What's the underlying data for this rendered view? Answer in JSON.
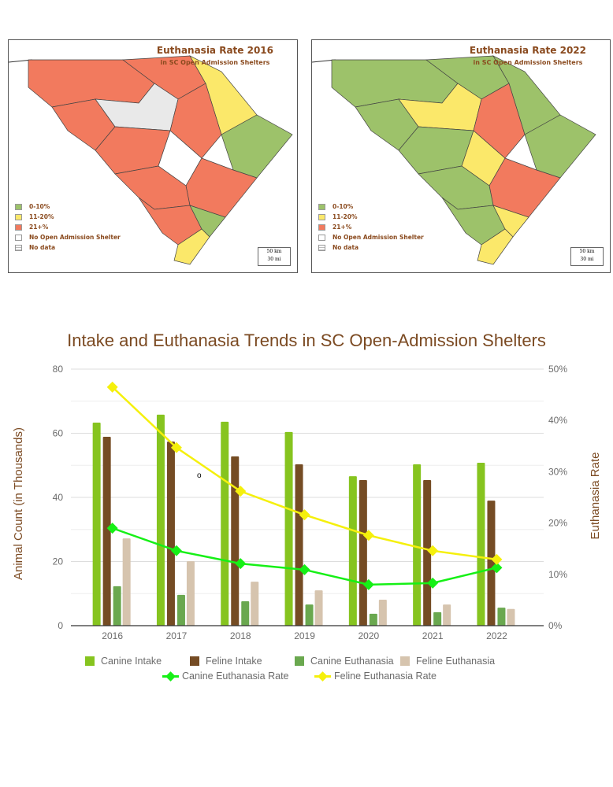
{
  "maps": [
    {
      "title": "Euthanasia Rate 2016",
      "subtitle": "in SC Open Admission Shelters",
      "scale_km": "50 km",
      "scale_mi": "30 mi"
    },
    {
      "title": "Euthanasia Rate 2022",
      "subtitle": "in SC Open Admission Shelters",
      "scale_km": "50 km",
      "scale_mi": "30 mi"
    }
  ],
  "map_legend": [
    {
      "label": "0-10%",
      "color": "#9dc26a"
    },
    {
      "label": "11-20%",
      "color": "#fbe86a"
    },
    {
      "label": "21+%",
      "color": "#f27a5e"
    },
    {
      "label": "No Open Admission Shelter",
      "color": "#ffffff"
    },
    {
      "label": "No data",
      "color": "#e9e9e9"
    }
  ],
  "stray_mark": "o",
  "chart_data": {
    "type": "bar",
    "title": "Intake and Euthanasia Trends in SC Open-Admission Shelters",
    "xlabel": "",
    "ylabel": "Animal Count (in Thousands)",
    "y2label": "Euthanasia Rate",
    "categories": [
      "2016",
      "2017",
      "2018",
      "2019",
      "2020",
      "2021",
      "2022"
    ],
    "ylim": [
      0,
      80
    ],
    "yticks": [
      "0",
      "20",
      "40",
      "60",
      "80"
    ],
    "y2lim": [
      0,
      50
    ],
    "y2ticks": [
      "0%",
      "10%",
      "20%",
      "30%",
      "40%",
      "50%"
    ],
    "grid": true,
    "legend_placement": "bottom",
    "series": [
      {
        "name": "Canine Intake",
        "kind": "bar",
        "color": "#86c41f",
        "values": [
          63.3,
          65.8,
          63.6,
          60.4,
          46.6,
          50.3,
          50.8
        ]
      },
      {
        "name": "Feline Intake",
        "kind": "bar",
        "color": "#754c24",
        "values": [
          58.9,
          57.4,
          52.8,
          50.3,
          45.4,
          45.4,
          39.0
        ]
      },
      {
        "name": "Canine Euthanasia",
        "kind": "bar",
        "color": "#6aa84f",
        "values": [
          12.3,
          9.6,
          7.6,
          6.6,
          3.7,
          4.2,
          5.6
        ]
      },
      {
        "name": "Feline Euthanasia",
        "kind": "bar",
        "color": "#d6c4ae",
        "values": [
          27.2,
          20.1,
          13.7,
          11.0,
          8.1,
          6.6,
          5.2
        ]
      },
      {
        "name": "Canine Euthanasia Rate",
        "kind": "line",
        "axis": "right",
        "color": "#16f016",
        "values": [
          19.0,
          14.6,
          12.1,
          10.9,
          8.0,
          8.3,
          11.3
        ]
      },
      {
        "name": "Feline Euthanasia Rate",
        "kind": "line",
        "axis": "right",
        "color": "#f5f00c",
        "values": [
          46.5,
          34.7,
          26.2,
          21.6,
          17.6,
          14.6,
          12.9
        ]
      }
    ]
  }
}
